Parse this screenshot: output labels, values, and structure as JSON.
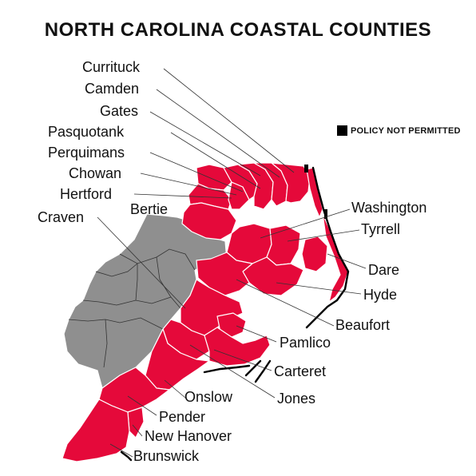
{
  "title": "NORTH CAROLINA COASTAL COUNTIES",
  "legend": {
    "label": "POLICY NOT PERMITTED",
    "swatch_color": "#000000"
  },
  "colors": {
    "coastal": "#e5093a",
    "non_coastal": "#8f8f8f",
    "boundary": "#ffffff",
    "not_permitted": "#000000"
  },
  "labels": {
    "currituck": "Currituck",
    "camden": "Camden",
    "gates": "Gates",
    "pasquotank": "Pasquotank",
    "perquimans": "Perquimans",
    "chowan": "Chowan",
    "hertford": "Hertford",
    "bertie": "Bertie",
    "craven": "Craven",
    "washington": "Washington",
    "tyrrell": "Tyrrell",
    "dare": "Dare",
    "hyde": "Hyde",
    "beaufort": "Beaufort",
    "pamlico": "Pamlico",
    "carteret": "Carteret",
    "onslow": "Onslow",
    "jones": "Jones",
    "pender": "Pender",
    "new_hanover": "New Hanover",
    "brunswick": "Brunswick"
  }
}
